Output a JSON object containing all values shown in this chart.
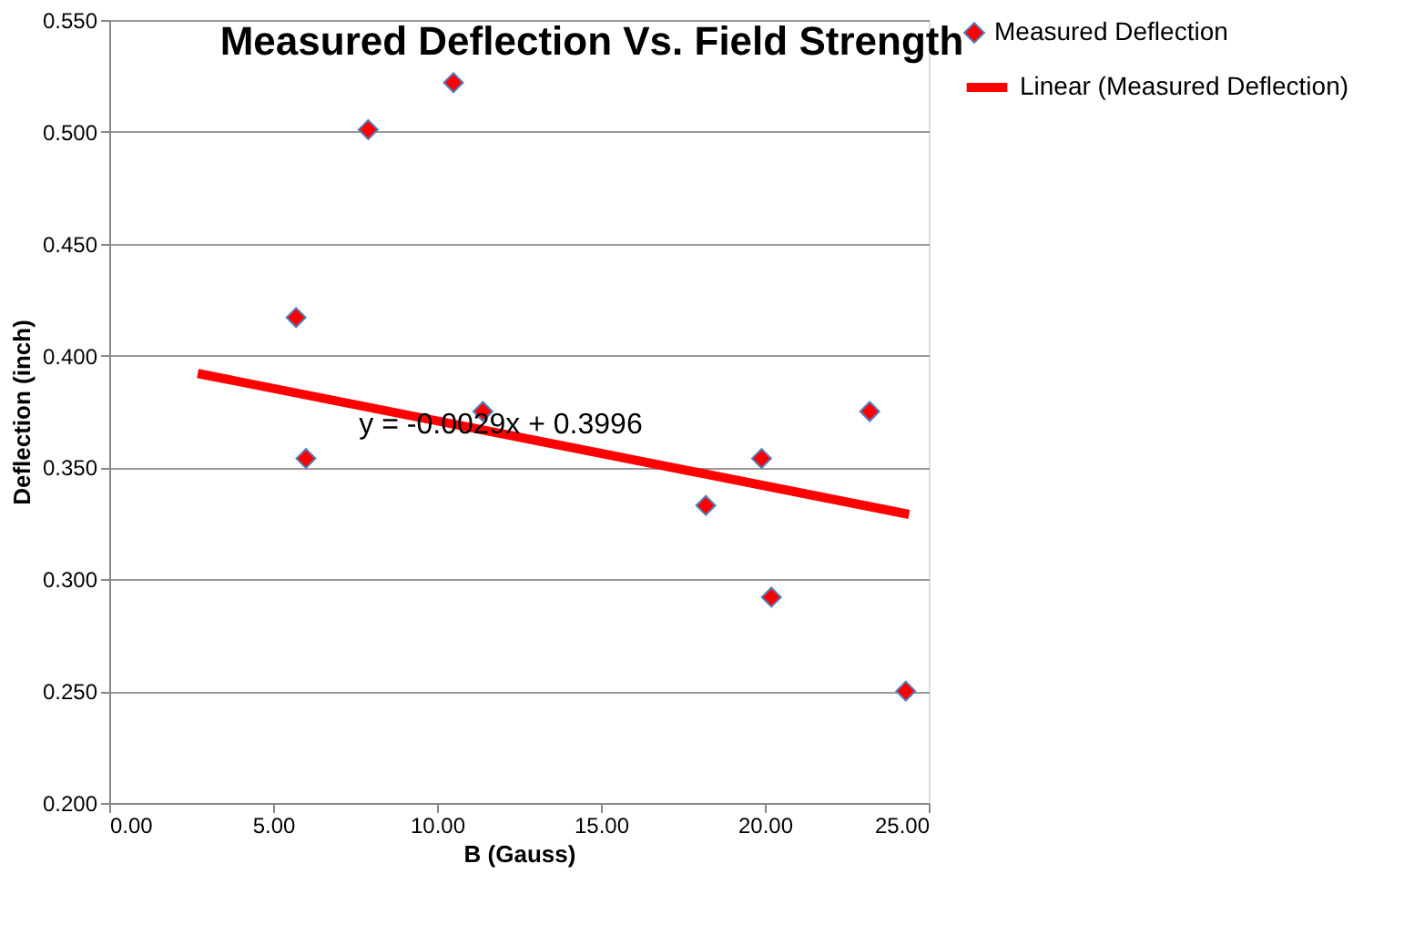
{
  "chart_data": {
    "type": "scatter",
    "title": "Measured Deflection Vs. Field Strength",
    "xlabel": "B (Gauss)",
    "ylabel": "Deflection (inch)",
    "xlim": [
      0,
      25
    ],
    "xticks": [
      {
        "value": 0,
        "label": "0.00"
      },
      {
        "value": 5,
        "label": "5.00"
      },
      {
        "value": 10,
        "label": "10.00"
      },
      {
        "value": 15,
        "label": "15.00"
      },
      {
        "value": 20,
        "label": "20.00"
      },
      {
        "value": 25,
        "label": "25.00"
      }
    ],
    "ylim": [
      0.2,
      0.55
    ],
    "yticks": [
      {
        "value": 0.2,
        "label": "0.200"
      },
      {
        "value": 0.25,
        "label": "0.250"
      },
      {
        "value": 0.3,
        "label": "0.300"
      },
      {
        "value": 0.35,
        "label": "0.350"
      },
      {
        "value": 0.4,
        "label": "0.400"
      },
      {
        "value": 0.45,
        "label": "0.450"
      },
      {
        "value": 0.5,
        "label": "0.500"
      },
      {
        "value": 0.55,
        "label": "0.550"
      }
    ],
    "grid": "y",
    "legend": "right",
    "series": [
      {
        "name": "Measured Deflection",
        "marker": "diamond",
        "color": "#ff0000",
        "x": [
          5.7,
          6.0,
          7.9,
          10.5,
          11.4,
          18.2,
          19.9,
          20.2,
          23.2,
          24.3
        ],
        "values": [
          0.417,
          0.354,
          0.501,
          0.522,
          0.375,
          0.333,
          0.354,
          0.292,
          0.375,
          0.25
        ]
      },
      {
        "name": "Linear (Measured Deflection)",
        "type": "line",
        "marker": "none",
        "line_style": "solid",
        "color": "#ff0000",
        "x": [
          2.7,
          24.4
        ],
        "values": [
          0.392,
          0.329
        ]
      }
    ],
    "annotations": [
      "y = -0.0029x + 0.3996"
    ]
  }
}
